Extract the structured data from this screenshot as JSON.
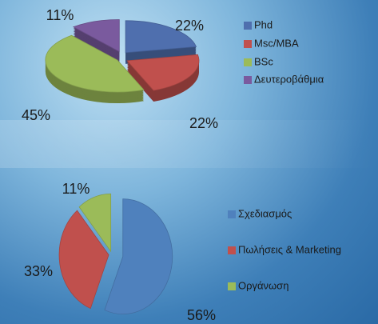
{
  "chart_data": [
    {
      "type": "pie",
      "categories": [
        "Phd",
        "Msc/MBA",
        "BSc",
        "Δευτεροβάθμια"
      ],
      "values": [
        22,
        22,
        45,
        11
      ],
      "value_labels": [
        "22%",
        "22%",
        "45%",
        "11%"
      ],
      "colors": [
        "#4f6fae",
        "#c0504d",
        "#9bbb59",
        "#7a5a9e"
      ]
    },
    {
      "type": "pie",
      "categories": [
        "Σχεδιασμός",
        "Πωλήσεις & Marketing",
        "Οργάνωση"
      ],
      "values": [
        56,
        33,
        11
      ],
      "value_labels": [
        "56%",
        "33%",
        "11%"
      ],
      "colors": [
        "#4f81bd",
        "#c0504d",
        "#9bbb59"
      ]
    }
  ]
}
